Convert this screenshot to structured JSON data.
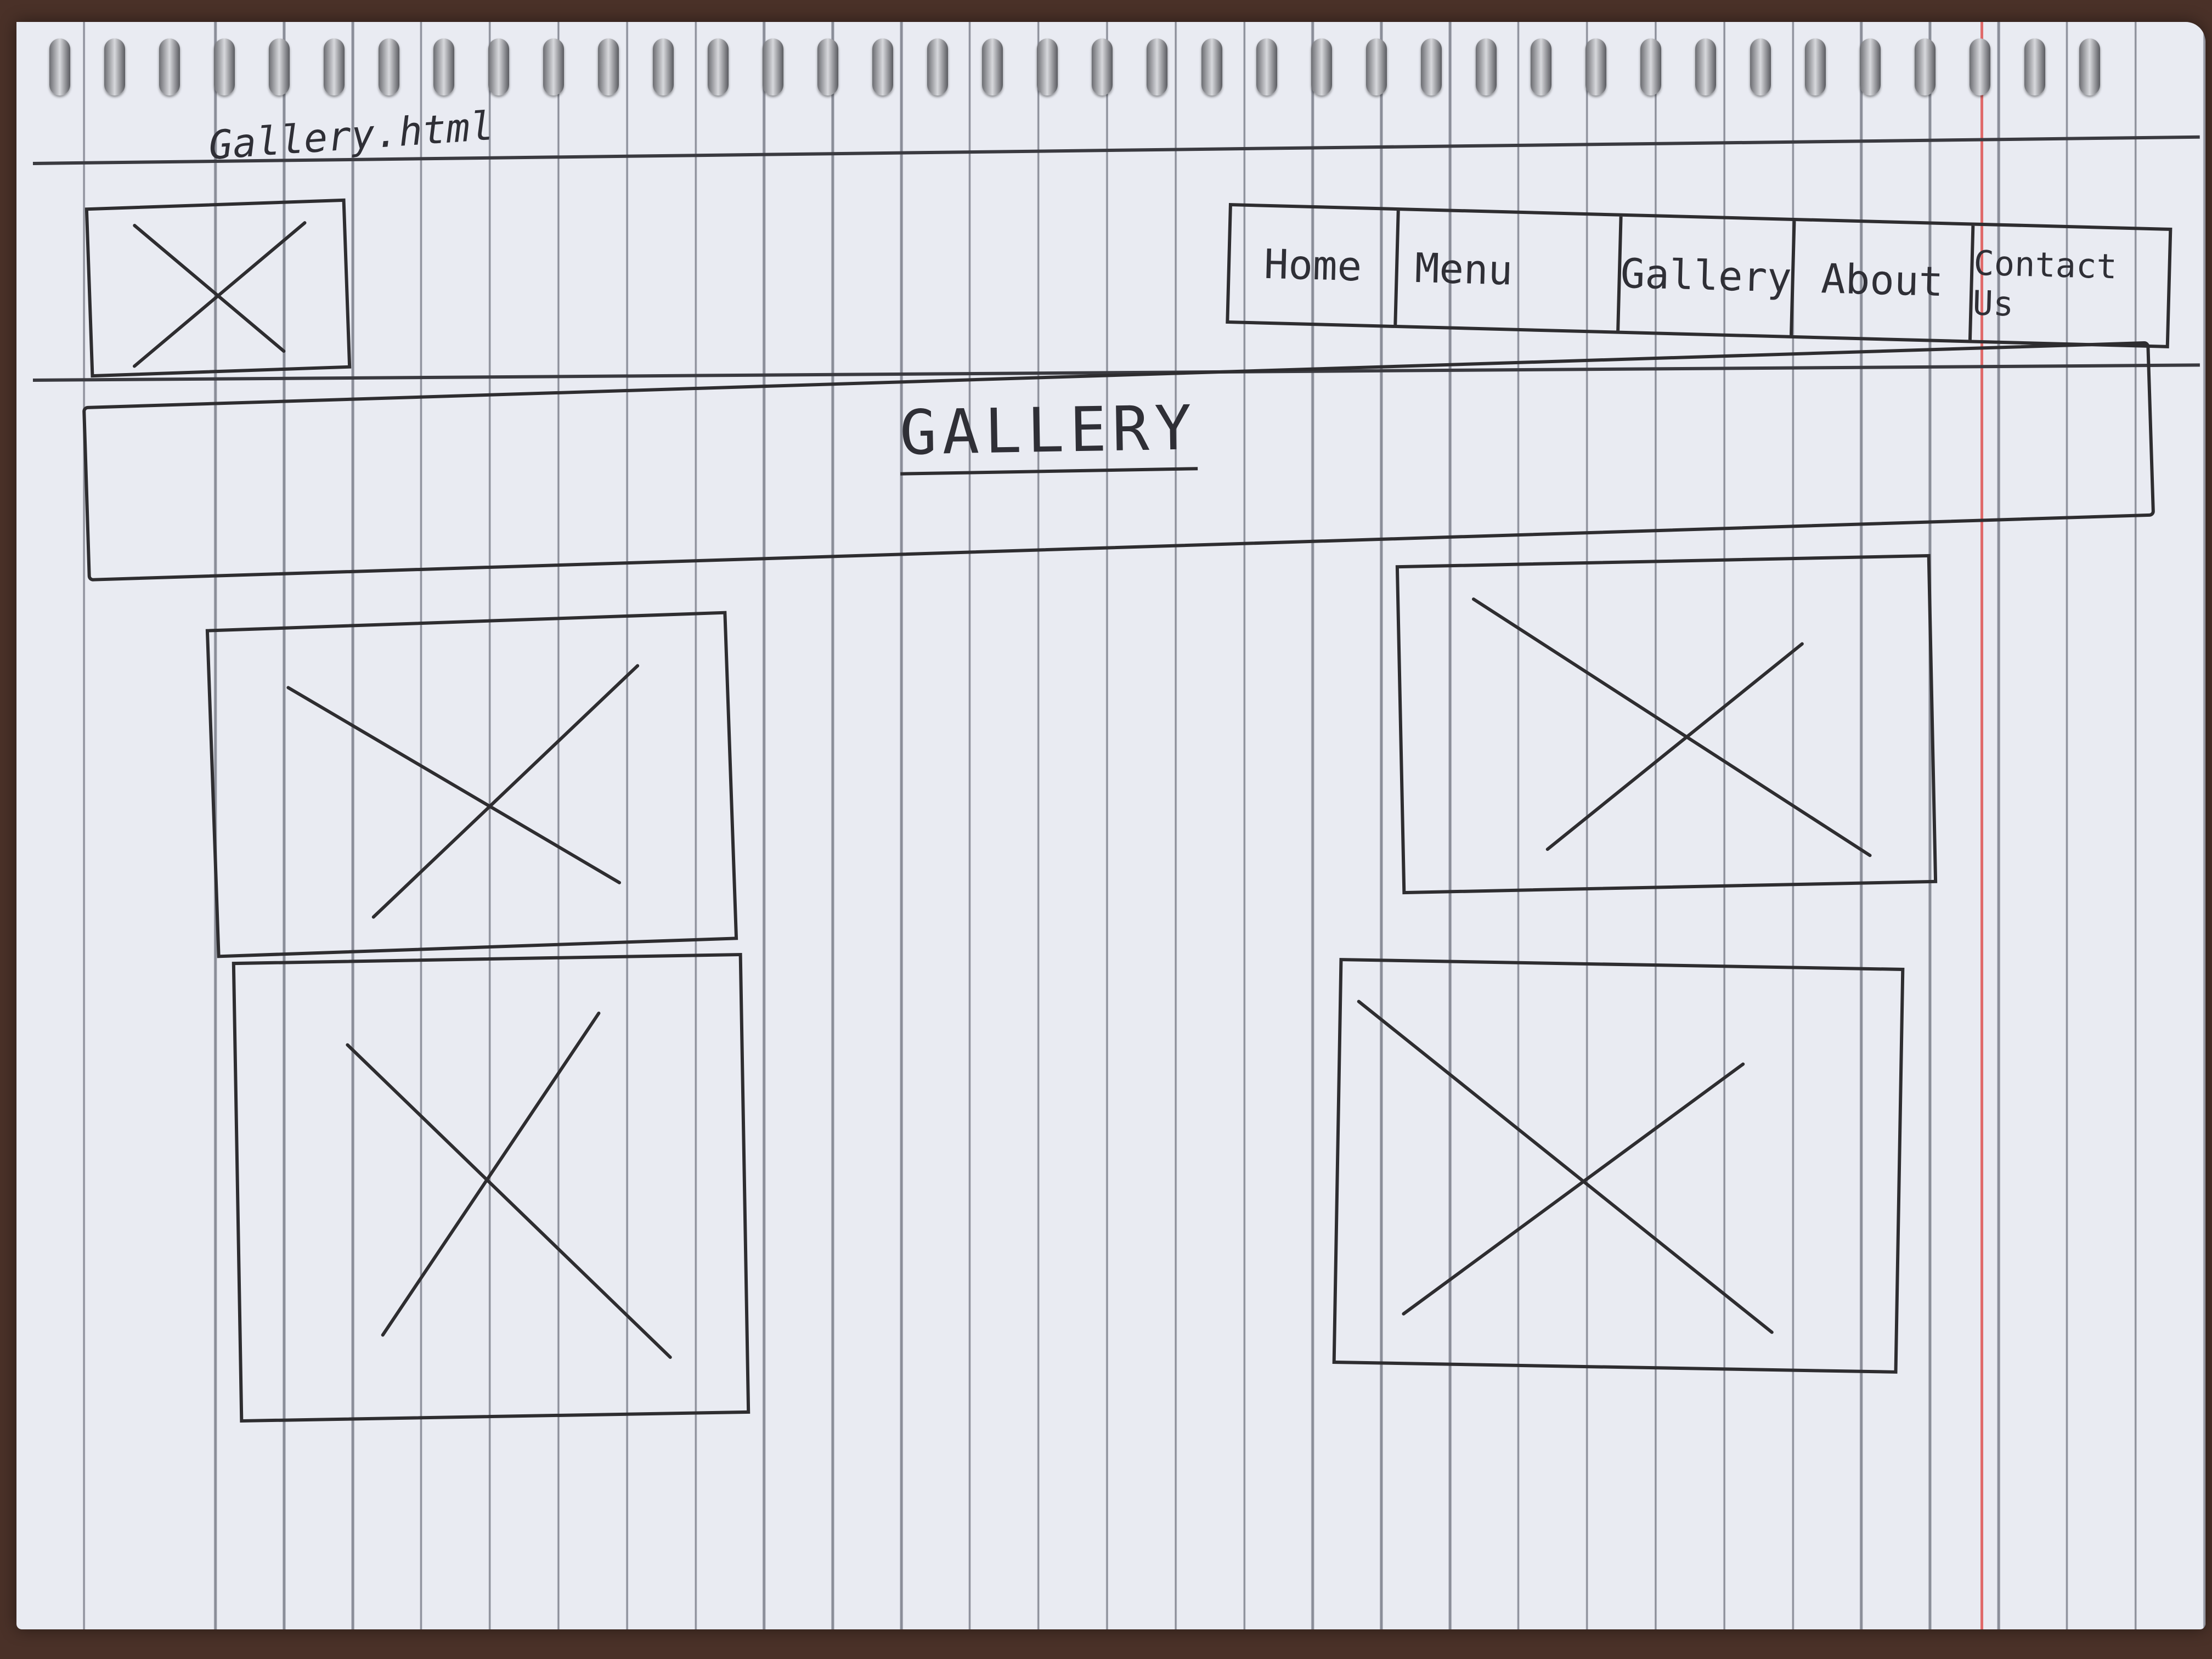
{
  "file_label": "Gallery.html",
  "header": {
    "logo_icon": "image-placeholder-icon",
    "nav": [
      {
        "label": "Home"
      },
      {
        "label": "Menu"
      },
      {
        "label": "Gallery"
      },
      {
        "label": "About"
      },
      {
        "label": "Contact Us"
      }
    ]
  },
  "main": {
    "title": "GALLERY",
    "images": [
      {
        "icon": "image-placeholder-icon"
      },
      {
        "icon": "image-placeholder-icon"
      },
      {
        "icon": "image-placeholder-icon"
      },
      {
        "icon": "image-placeholder-icon"
      }
    ]
  },
  "colors": {
    "paper": "#e9ebf2",
    "ink": "#2e2d30",
    "rule": "#8a8d98",
    "margin": "#e06a6a",
    "desk": "#4a3128"
  }
}
